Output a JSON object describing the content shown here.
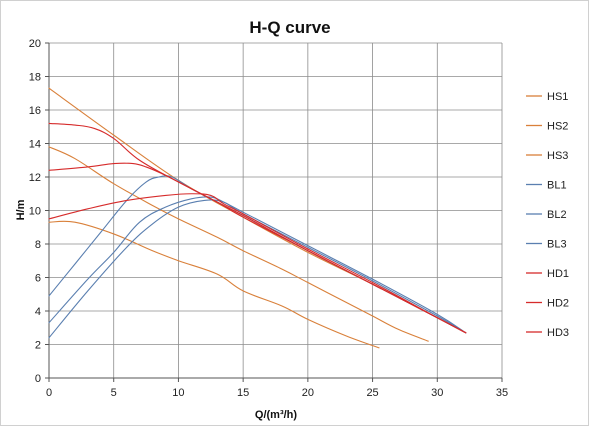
{
  "chart_data": {
    "type": "line",
    "title": "H-Q  curve",
    "xlabel": "Q/(m³/h)",
    "ylabel": "H/m",
    "xlim": [
      0,
      35
    ],
    "ylim": [
      0,
      20
    ],
    "xticks": [
      0,
      5,
      10,
      15,
      20,
      25,
      30,
      35
    ],
    "yticks": [
      0,
      2,
      4,
      6,
      8,
      10,
      12,
      14,
      16,
      18,
      20
    ],
    "grid": true,
    "legend_position": "right",
    "series": [
      {
        "name": "HS1",
        "color": "#d9803a",
        "x": [
          0,
          2,
          5,
          8,
          10,
          13,
          15,
          18,
          20,
          23,
          25.5
        ],
        "y": [
          9.3,
          9.3,
          8.6,
          7.6,
          7.0,
          6.2,
          5.2,
          4.3,
          3.5,
          2.5,
          1.8
        ]
      },
      {
        "name": "HS2",
        "color": "#d9803a",
        "x": [
          0,
          2,
          5,
          8,
          10,
          13,
          15,
          18,
          20,
          23,
          25,
          27,
          29.3
        ],
        "y": [
          13.8,
          13.1,
          11.6,
          10.3,
          9.5,
          8.4,
          7.6,
          6.5,
          5.7,
          4.5,
          3.7,
          2.9,
          2.2
        ]
      },
      {
        "name": "HS3",
        "color": "#d9803a",
        "x": [
          0,
          5,
          10,
          15,
          20,
          25,
          30,
          32.2
        ],
        "y": [
          17.3,
          14.5,
          11.8,
          9.6,
          7.5,
          5.6,
          3.6,
          2.7
        ]
      },
      {
        "name": "BL1",
        "color": "#5a7fb0",
        "x": [
          0,
          3,
          6,
          8,
          10,
          12,
          13.5,
          15,
          20,
          25,
          30,
          32.2
        ],
        "y": [
          2.4,
          5.2,
          7.8,
          9.2,
          10.2,
          10.6,
          10.5,
          9.8,
          7.8,
          5.8,
          3.7,
          2.7
        ]
      },
      {
        "name": "BL2",
        "color": "#5a7fb0",
        "x": [
          0,
          3,
          5,
          7,
          9,
          11,
          12.5,
          13.5,
          15,
          20,
          25,
          30,
          32.2
        ],
        "y": [
          3.3,
          5.9,
          7.5,
          9.3,
          10.2,
          10.7,
          10.8,
          10.5,
          9.9,
          7.9,
          5.9,
          3.8,
          2.7
        ]
      },
      {
        "name": "BL3",
        "color": "#5a7fb0",
        "x": [
          0,
          2,
          4,
          6,
          7.5,
          8.5,
          9.5,
          11,
          13,
          15,
          20,
          25,
          30,
          32.2
        ],
        "y": [
          4.9,
          6.8,
          8.7,
          10.6,
          11.7,
          12.0,
          12.0,
          11.3,
          10.5,
          9.7,
          7.6,
          5.6,
          3.6,
          2.7
        ]
      },
      {
        "name": "HD1",
        "color": "#d62b2b",
        "x": [
          0,
          3,
          6,
          9,
          11,
          12.5,
          13.5,
          15,
          20,
          25,
          30,
          32.2
        ],
        "y": [
          9.5,
          10.1,
          10.6,
          10.9,
          11.0,
          10.9,
          10.4,
          9.8,
          7.7,
          5.7,
          3.6,
          2.7
        ]
      },
      {
        "name": "HD2",
        "color": "#d62b2b",
        "x": [
          0,
          3,
          5,
          6.5,
          7.5,
          9,
          11,
          13,
          15,
          20,
          25,
          30,
          32.2
        ],
        "y": [
          12.4,
          12.6,
          12.8,
          12.8,
          12.6,
          12.1,
          11.3,
          10.5,
          9.7,
          7.6,
          5.6,
          3.6,
          2.7
        ]
      },
      {
        "name": "HD3",
        "color": "#d62b2b",
        "x": [
          0,
          2,
          3.5,
          5,
          7,
          10,
          13,
          15,
          20,
          25,
          30,
          32.2
        ],
        "y": [
          15.2,
          15.1,
          14.9,
          14.3,
          13.0,
          11.7,
          10.5,
          9.6,
          7.6,
          5.6,
          3.6,
          2.7
        ]
      }
    ]
  }
}
